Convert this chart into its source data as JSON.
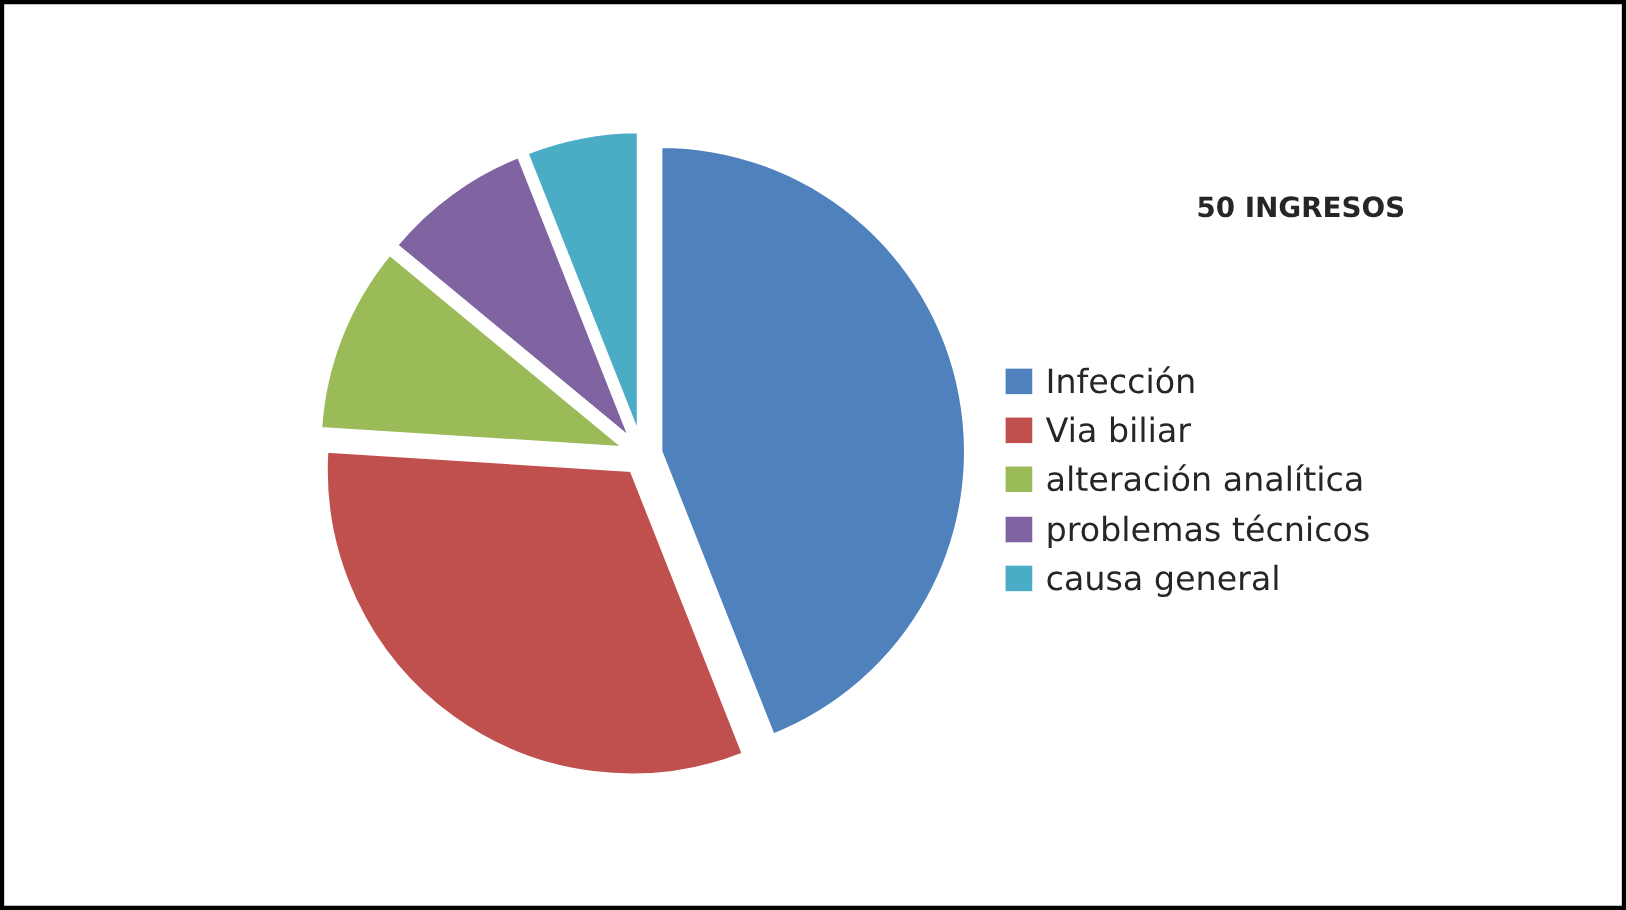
{
  "chart_data": {
    "type": "pie",
    "title": "50 INGRESOS",
    "categories": [
      "Infección",
      "Via biliar",
      "alteración analítica",
      "problemas técnicos",
      "causa general"
    ],
    "values": [
      44,
      32,
      10,
      8,
      6
    ],
    "colors": [
      "#4f81bd",
      "#c0504d",
      "#9bbb59",
      "#8064a2",
      "#4bacc6"
    ],
    "legend": "right"
  }
}
